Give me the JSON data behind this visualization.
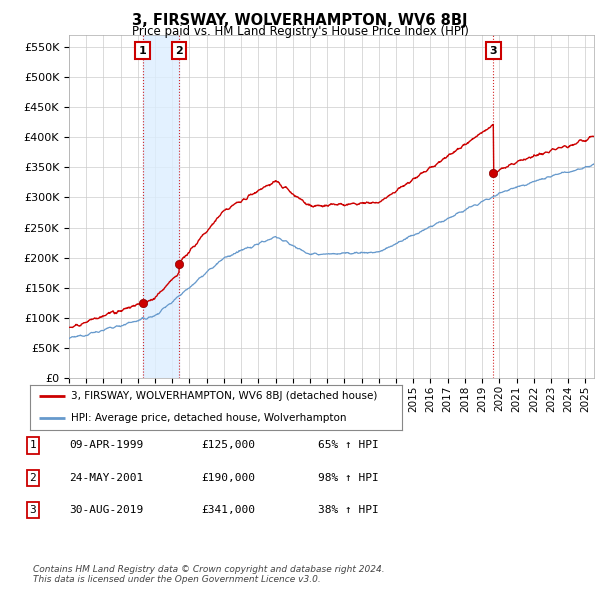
{
  "title": "3, FIRSWAY, WOLVERHAMPTON, WV6 8BJ",
  "subtitle": "Price paid vs. HM Land Registry's House Price Index (HPI)",
  "ylim": [
    0,
    570000
  ],
  "yticks": [
    0,
    50000,
    100000,
    150000,
    200000,
    250000,
    300000,
    350000,
    400000,
    450000,
    500000,
    550000
  ],
  "ytick_labels": [
    "£0",
    "£50K",
    "£100K",
    "£150K",
    "£200K",
    "£250K",
    "£300K",
    "£350K",
    "£400K",
    "£450K",
    "£500K",
    "£550K"
  ],
  "xlim_start": 1995.0,
  "xlim_end": 2025.5,
  "sale_dates": [
    1999.27,
    2001.39,
    2019.66
  ],
  "sale_prices": [
    125000,
    190000,
    341000
  ],
  "sale_labels": [
    "1",
    "2",
    "3"
  ],
  "red_line_color": "#cc0000",
  "blue_line_color": "#6699cc",
  "shade_color": "#ddeeff",
  "annotation_box_color": "#cc0000",
  "legend_label_red": "3, FIRSWAY, WOLVERHAMPTON, WV6 8BJ (detached house)",
  "legend_label_blue": "HPI: Average price, detached house, Wolverhampton",
  "table_rows": [
    [
      "1",
      "09-APR-1999",
      "£125,000",
      "65% ↑ HPI"
    ],
    [
      "2",
      "24-MAY-2001",
      "£190,000",
      "98% ↑ HPI"
    ],
    [
      "3",
      "30-AUG-2019",
      "£341,000",
      "38% ↑ HPI"
    ]
  ],
  "footer": "Contains HM Land Registry data © Crown copyright and database right 2024.\nThis data is licensed under the Open Government Licence v3.0.",
  "background_color": "#ffffff",
  "plot_bg_color": "#ffffff",
  "grid_color": "#cccccc"
}
